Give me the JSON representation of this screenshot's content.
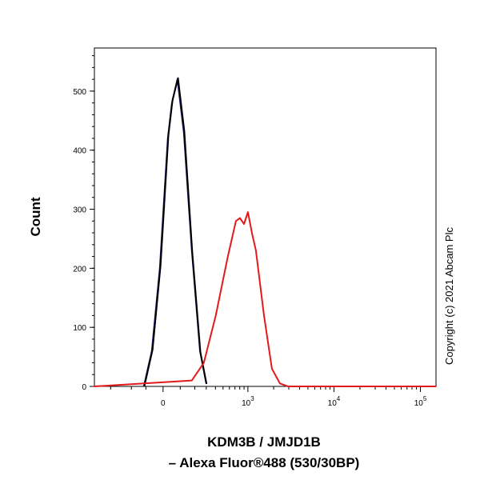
{
  "chart_data": {
    "type": "line",
    "xlabel": [
      "KDM3B / JMJD1B",
      "– Alexa Fluor®488 (530/30BP)"
    ],
    "ylabel": "Count",
    "annotation": "Copyright (c) 2021 Abcam Plc",
    "xscale": "biexponential",
    "xlim": [
      -640,
      151500
    ],
    "ylim": [
      0,
      573
    ],
    "xticks": [
      0,
      {
        "value": 1000,
        "label": "10|3"
      },
      {
        "value": 10000,
        "label": "10|4"
      },
      {
        "value": 100000,
        "label": "10|5"
      }
    ],
    "yticks": [
      0,
      100,
      200,
      300,
      400,
      500
    ],
    "series": [
      {
        "color": "#1a1a6e",
        "x": [
          -113,
          -64,
          -18,
          27,
          50,
          83,
          123,
          178,
          243,
          300
        ],
        "values": [
          0,
          60,
          200,
          420,
          480,
          520,
          430,
          230,
          60,
          5
        ]
      },
      {
        "color": "#000000",
        "x": [
          -110,
          -60,
          -14,
          30,
          54,
          86,
          126,
          181,
          246,
          303
        ],
        "values": [
          0,
          62,
          205,
          425,
          485,
          522,
          432,
          228,
          58,
          4
        ]
      },
      {
        "color": "#e31a1c",
        "x": [
          -640,
          178,
          277,
          403,
          574,
          719,
          804,
          899,
          1000,
          1116,
          1243,
          1544,
          1911,
          2365,
          2933,
          151500
        ],
        "values": [
          0,
          10,
          40,
          120,
          220,
          280,
          285,
          275,
          295,
          260,
          230,
          120,
          30,
          5,
          0,
          0
        ]
      }
    ]
  }
}
